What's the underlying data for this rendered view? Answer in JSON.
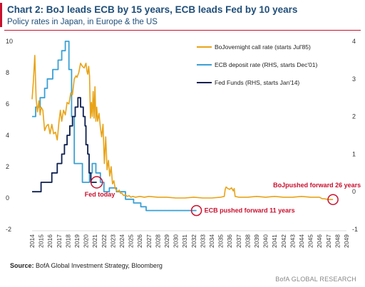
{
  "title": "Chart 2: BoJ leads ECB by 15 years, ECB leads Fed by 10 years",
  "subtitle": "Policy rates in Japan, in Europe & the US",
  "source_label": "Source:",
  "source_text": " BofA Global Investment Strategy, Bloomberg",
  "footer": "BofA GLOBAL RESEARCH",
  "colors": {
    "boj": "#e8a317",
    "ecb": "#3aa0d5",
    "fed": "#0d1f4f",
    "annotation": "#c8102e",
    "accent": "#1f4e79"
  },
  "chart_data": {
    "type": "line",
    "title": "Chart 2: BoJ leads ECB by 15 years, ECB leads Fed by 10 years",
    "subtitle": "Policy rates in Japan, in Europe & the US",
    "x_tick_labels": [
      "2014",
      "2015",
      "2016",
      "2017",
      "2018",
      "2019",
      "2020",
      "2021",
      "2022",
      "2023",
      "2024",
      "2025",
      "2026",
      "2027",
      "2028",
      "2029",
      "2030",
      "2031",
      "2032",
      "2033",
      "2034",
      "2035",
      "2036",
      "2037",
      "2038",
      "2039",
      "2040",
      "2041",
      "2042",
      "2043",
      "2044",
      "2045",
      "2046",
      "2047",
      "2048",
      "2049"
    ],
    "xlim": [
      2014,
      2049
    ],
    "y_left": {
      "lim": [
        -2,
        10
      ],
      "ticks": [
        -2,
        0,
        2,
        4,
        6,
        8,
        10
      ]
    },
    "y_right": {
      "lim": [
        -1,
        4
      ],
      "ticks": [
        -1,
        0,
        1,
        2,
        3,
        4
      ]
    },
    "grid": false,
    "legend_position": "top-right",
    "series": [
      {
        "name": "BoJovernight call rate (starts Jul'85)",
        "axis": "left",
        "color": "#e8a317",
        "x": [
          2014.0,
          2014.15,
          2014.3,
          2014.45,
          2014.6,
          2014.75,
          2014.9,
          2015.0,
          2015.2,
          2015.4,
          2015.6,
          2015.8,
          2016.0,
          2016.2,
          2016.4,
          2016.6,
          2016.8,
          2017.0,
          2017.15,
          2017.3,
          2017.5,
          2017.7,
          2017.9,
          2018.1,
          2018.3,
          2018.5,
          2018.7,
          2018.9,
          2019.0,
          2019.2,
          2019.4,
          2019.6,
          2019.8,
          2020.0,
          2020.1,
          2020.2,
          2020.3,
          2020.4,
          2020.5,
          2020.6,
          2020.7,
          2020.8,
          2020.9,
          2021.0,
          2021.1,
          2021.2,
          2021.3,
          2021.45,
          2021.6,
          2021.75,
          2021.9,
          2022.05,
          2022.2,
          2022.35,
          2022.5,
          2022.65,
          2022.8,
          2022.95,
          2023.1,
          2023.25,
          2023.4,
          2023.55,
          2023.7,
          2023.85,
          2024.0,
          2024.2,
          2024.4,
          2024.6,
          2024.8,
          2025.0,
          2025.2,
          2025.5,
          2026.0,
          2026.5,
          2027.0,
          2028.0,
          2029.0,
          2030.0,
          2031.0,
          2032.0,
          2033.0,
          2034.0,
          2035.0,
          2035.4,
          2035.5,
          2035.6,
          2035.8,
          2036.0,
          2036.2,
          2036.4,
          2036.5,
          2036.6,
          2037.0,
          2038.0,
          2039.0,
          2040.0,
          2041.0,
          2042.0,
          2043.0,
          2044.0,
          2045.0,
          2046.0,
          2046.3,
          2046.5,
          2047.0,
          2047.5
        ],
        "y": [
          6.3,
          7.5,
          9.1,
          6.3,
          5.5,
          6.2,
          5.3,
          5.8,
          5.6,
          4.3,
          4.6,
          4.7,
          4.1,
          4.7,
          4.1,
          4.2,
          3.7,
          4.9,
          5.6,
          4.9,
          5.6,
          5.3,
          6.1,
          6.0,
          6.7,
          6.6,
          7.6,
          7.8,
          7.7,
          8.0,
          8.6,
          8.4,
          8.3,
          8.6,
          8.1,
          7.9,
          8.4,
          7.8,
          5.1,
          6.1,
          5.2,
          6.8,
          5.1,
          7.1,
          4.9,
          5.8,
          4.9,
          5.4,
          4.5,
          3.9,
          4.7,
          2.2,
          3.9,
          1.8,
          2.4,
          1.4,
          2.0,
          0.9,
          1.1,
          0.6,
          0.5,
          0.4,
          0.5,
          0.3,
          0.3,
          0.15,
          0.2,
          0.1,
          0.15,
          0.05,
          0.1,
          0.05,
          0.1,
          0.05,
          0.1,
          0.05,
          0.05,
          0.0,
          0.0,
          0.05,
          0.0,
          0.0,
          0.05,
          0.1,
          0.55,
          0.7,
          0.6,
          0.55,
          0.65,
          0.45,
          0.6,
          0.1,
          0.05,
          0.05,
          0.1,
          0.05,
          0.1,
          0.05,
          0.05,
          0.1,
          0.05,
          0.05,
          -0.05,
          -0.05,
          -0.1,
          -0.1
        ]
      },
      {
        "name": "ECB deposit rate (RHS, starts Dec'01)",
        "axis": "right",
        "color": "#3aa0d5",
        "x": [
          2014.0,
          2014.4,
          2014.4,
          2014.9,
          2014.9,
          2015.4,
          2015.4,
          2015.7,
          2015.7,
          2016.3,
          2016.3,
          2016.9,
          2016.9,
          2017.3,
          2017.3,
          2017.7,
          2017.7,
          2018.1,
          2018.1,
          2018.4,
          2018.4,
          2018.7,
          2018.7,
          2019.6,
          2019.6,
          2020.4,
          2020.4,
          2020.7,
          2020.7,
          2021.1,
          2021.1,
          2021.6,
          2021.6,
          2022.0,
          2022.0,
          2022.6,
          2022.6,
          2023.4,
          2023.4,
          2024.4,
          2024.4,
          2025.3,
          2025.3,
          2026.1,
          2026.1,
          2026.7,
          2026.7,
          2027.6,
          2027.6,
          2028.6,
          2028.6,
          2032.3
        ],
        "y": [
          2.0,
          2.0,
          2.25,
          2.25,
          2.5,
          2.5,
          2.75,
          2.75,
          3.0,
          3.0,
          3.25,
          3.25,
          3.5,
          3.5,
          3.75,
          3.75,
          4.0,
          4.0,
          3.25,
          3.25,
          2.0,
          2.0,
          0.75,
          0.75,
          0.25,
          0.25,
          0.5,
          0.5,
          0.75,
          0.75,
          0.5,
          0.5,
          0.25,
          0.25,
          0.0,
          0.0,
          0.1,
          0.1,
          0.0,
          0.0,
          -0.2,
          -0.2,
          -0.3,
          -0.3,
          -0.4,
          -0.4,
          -0.5,
          -0.5,
          -0.5,
          -0.5,
          -0.5,
          -0.5
        ]
      },
      {
        "name": "Fed Funds (RHS, starts Jan'14)",
        "axis": "right",
        "color": "#0d1f4f",
        "x": [
          2014.0,
          2015.0,
          2015.0,
          2016.2,
          2016.2,
          2016.8,
          2016.8,
          2017.3,
          2017.3,
          2017.6,
          2017.6,
          2017.9,
          2017.9,
          2018.2,
          2018.2,
          2018.5,
          2018.5,
          2018.8,
          2018.8,
          2019.1,
          2019.1,
          2019.4,
          2019.4,
          2019.7,
          2019.7,
          2019.9,
          2019.9,
          2020.0,
          2020.0,
          2020.2,
          2020.2,
          2020.35,
          2020.35,
          2020.55,
          2020.55,
          2021.2
        ],
        "y": [
          0.0,
          0.0,
          0.25,
          0.25,
          0.5,
          0.5,
          0.75,
          0.75,
          1.0,
          1.0,
          1.25,
          1.25,
          1.5,
          1.5,
          1.75,
          1.75,
          2.0,
          2.0,
          2.25,
          2.25,
          2.5,
          2.5,
          2.25,
          2.25,
          2.0,
          2.0,
          1.75,
          1.75,
          1.25,
          1.25,
          1.0,
          1.0,
          0.5,
          0.5,
          0.25,
          0.25
        ]
      }
    ],
    "annotations": [
      {
        "text": "Fed today",
        "x": 2021.2,
        "y_axis": "right",
        "y": 0.25
      },
      {
        "text": "ECB pushed forward 11 years",
        "x": 2032.3,
        "y_axis": "right",
        "y": -0.5
      },
      {
        "text": "BoJpushed forward 26 years",
        "x": 2047.5,
        "y_axis": "left",
        "y": -0.1
      }
    ]
  }
}
